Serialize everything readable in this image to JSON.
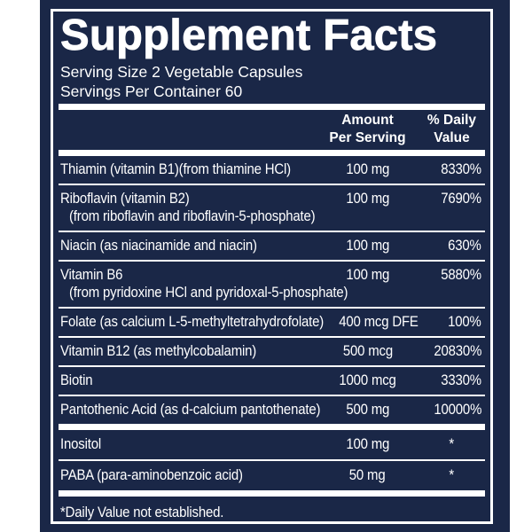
{
  "title": "Supplement Facts",
  "serving": {
    "size": "Serving Size 2 Vegetable Capsules",
    "per_container": "Servings Per Container 60"
  },
  "columns": {
    "amount_line1": "Amount",
    "amount_line2": "Per Serving",
    "daily_line1": "% Daily",
    "daily_line2": "Value"
  },
  "rows": [
    {
      "name": "Thiamin (vitamin B1)(from thiamine HCl)",
      "amount": "100 mg",
      "dv": "8330%"
    },
    {
      "name": "Riboflavin (vitamin B2)",
      "sub": "(from riboflavin and riboflavin-5-phosphate)",
      "amount": "100 mg",
      "dv": "7690%"
    },
    {
      "name": "Niacin (as niacinamide and niacin)",
      "amount": "100 mg",
      "dv": "630%"
    },
    {
      "name": "Vitamin B6",
      "sub": "(from pyridoxine HCl and pyridoxal-5-phosphate)",
      "amount": "100 mg",
      "dv": "5880%"
    },
    {
      "name": "Folate (as calcium L-5-methyltetrahydrofolate)",
      "amount": "400 mcg DFE",
      "dv": "100%"
    },
    {
      "name": "Vitamin B12 (as methylcobalamin)",
      "amount": "500 mcg",
      "dv": "20830%"
    },
    {
      "name": "Biotin",
      "amount": "1000 mcg",
      "dv": "3330%"
    },
    {
      "name": "Pantothenic Acid (as d-calcium pantothenate)",
      "amount": "500 mg",
      "dv": "10000%"
    }
  ],
  "extra_rows": [
    {
      "name": "Inositol",
      "amount": "100 mg",
      "dv": "*"
    },
    {
      "name": "PABA (para-aminobenzoic acid)",
      "amount": "50 mg",
      "dv": "*"
    }
  ],
  "footnote": "*Daily Value not established.",
  "colors": {
    "panel_navy": "#1a2747",
    "text_white": "#ffffff",
    "page_background": "#ffffff"
  }
}
